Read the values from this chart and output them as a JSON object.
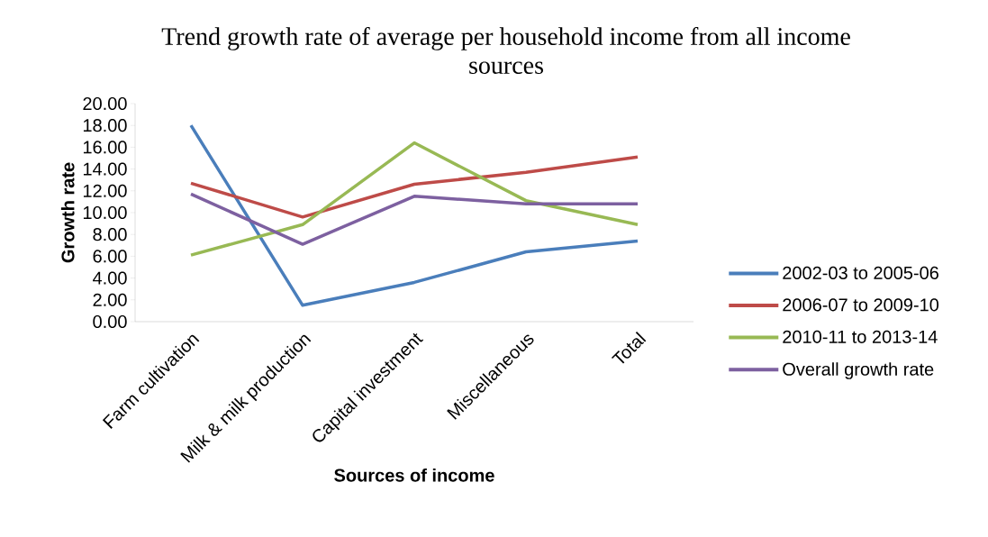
{
  "chart_data": {
    "type": "line",
    "title": "Trend growth rate of average per household income from all income sources",
    "xlabel": "Sources of income",
    "ylabel": "Growth rate",
    "categories": [
      "Farm cultivation",
      "Milk & milk production",
      "Capital investment",
      "Miscellaneous",
      "Total"
    ],
    "series": [
      {
        "name": "2002-03 to 2005-06",
        "color": "#4a7ebb",
        "values": [
          18.0,
          1.5,
          3.6,
          6.4,
          7.4
        ]
      },
      {
        "name": "2006-07 to 2009-10",
        "color": "#be4b48",
        "values": [
          12.7,
          9.6,
          12.6,
          13.7,
          15.1
        ]
      },
      {
        "name": "2010-11 to 2013-14",
        "color": "#98b954",
        "values": [
          6.1,
          8.9,
          16.4,
          11.1,
          8.9
        ]
      },
      {
        "name": "Overall growth rate",
        "color": "#7d60a0",
        "values": [
          11.7,
          7.1,
          11.5,
          10.8,
          10.8
        ]
      }
    ],
    "ylim": [
      0,
      20
    ],
    "yticks": [
      {
        "value": 0,
        "label": "0.00"
      },
      {
        "value": 2,
        "label": "2.00"
      },
      {
        "value": 4,
        "label": "4.00"
      },
      {
        "value": 6,
        "label": "6.00"
      },
      {
        "value": 8,
        "label": "8.00"
      },
      {
        "value": 10,
        "label": "10.00"
      },
      {
        "value": 12,
        "label": "12.00"
      },
      {
        "value": 14,
        "label": "14.00"
      },
      {
        "value": 16,
        "label": "16.00"
      },
      {
        "value": 18,
        "label": "18.00"
      },
      {
        "value": 20,
        "label": "20.00"
      }
    ],
    "legend": "right",
    "grid": false,
    "line_style": "solid"
  }
}
